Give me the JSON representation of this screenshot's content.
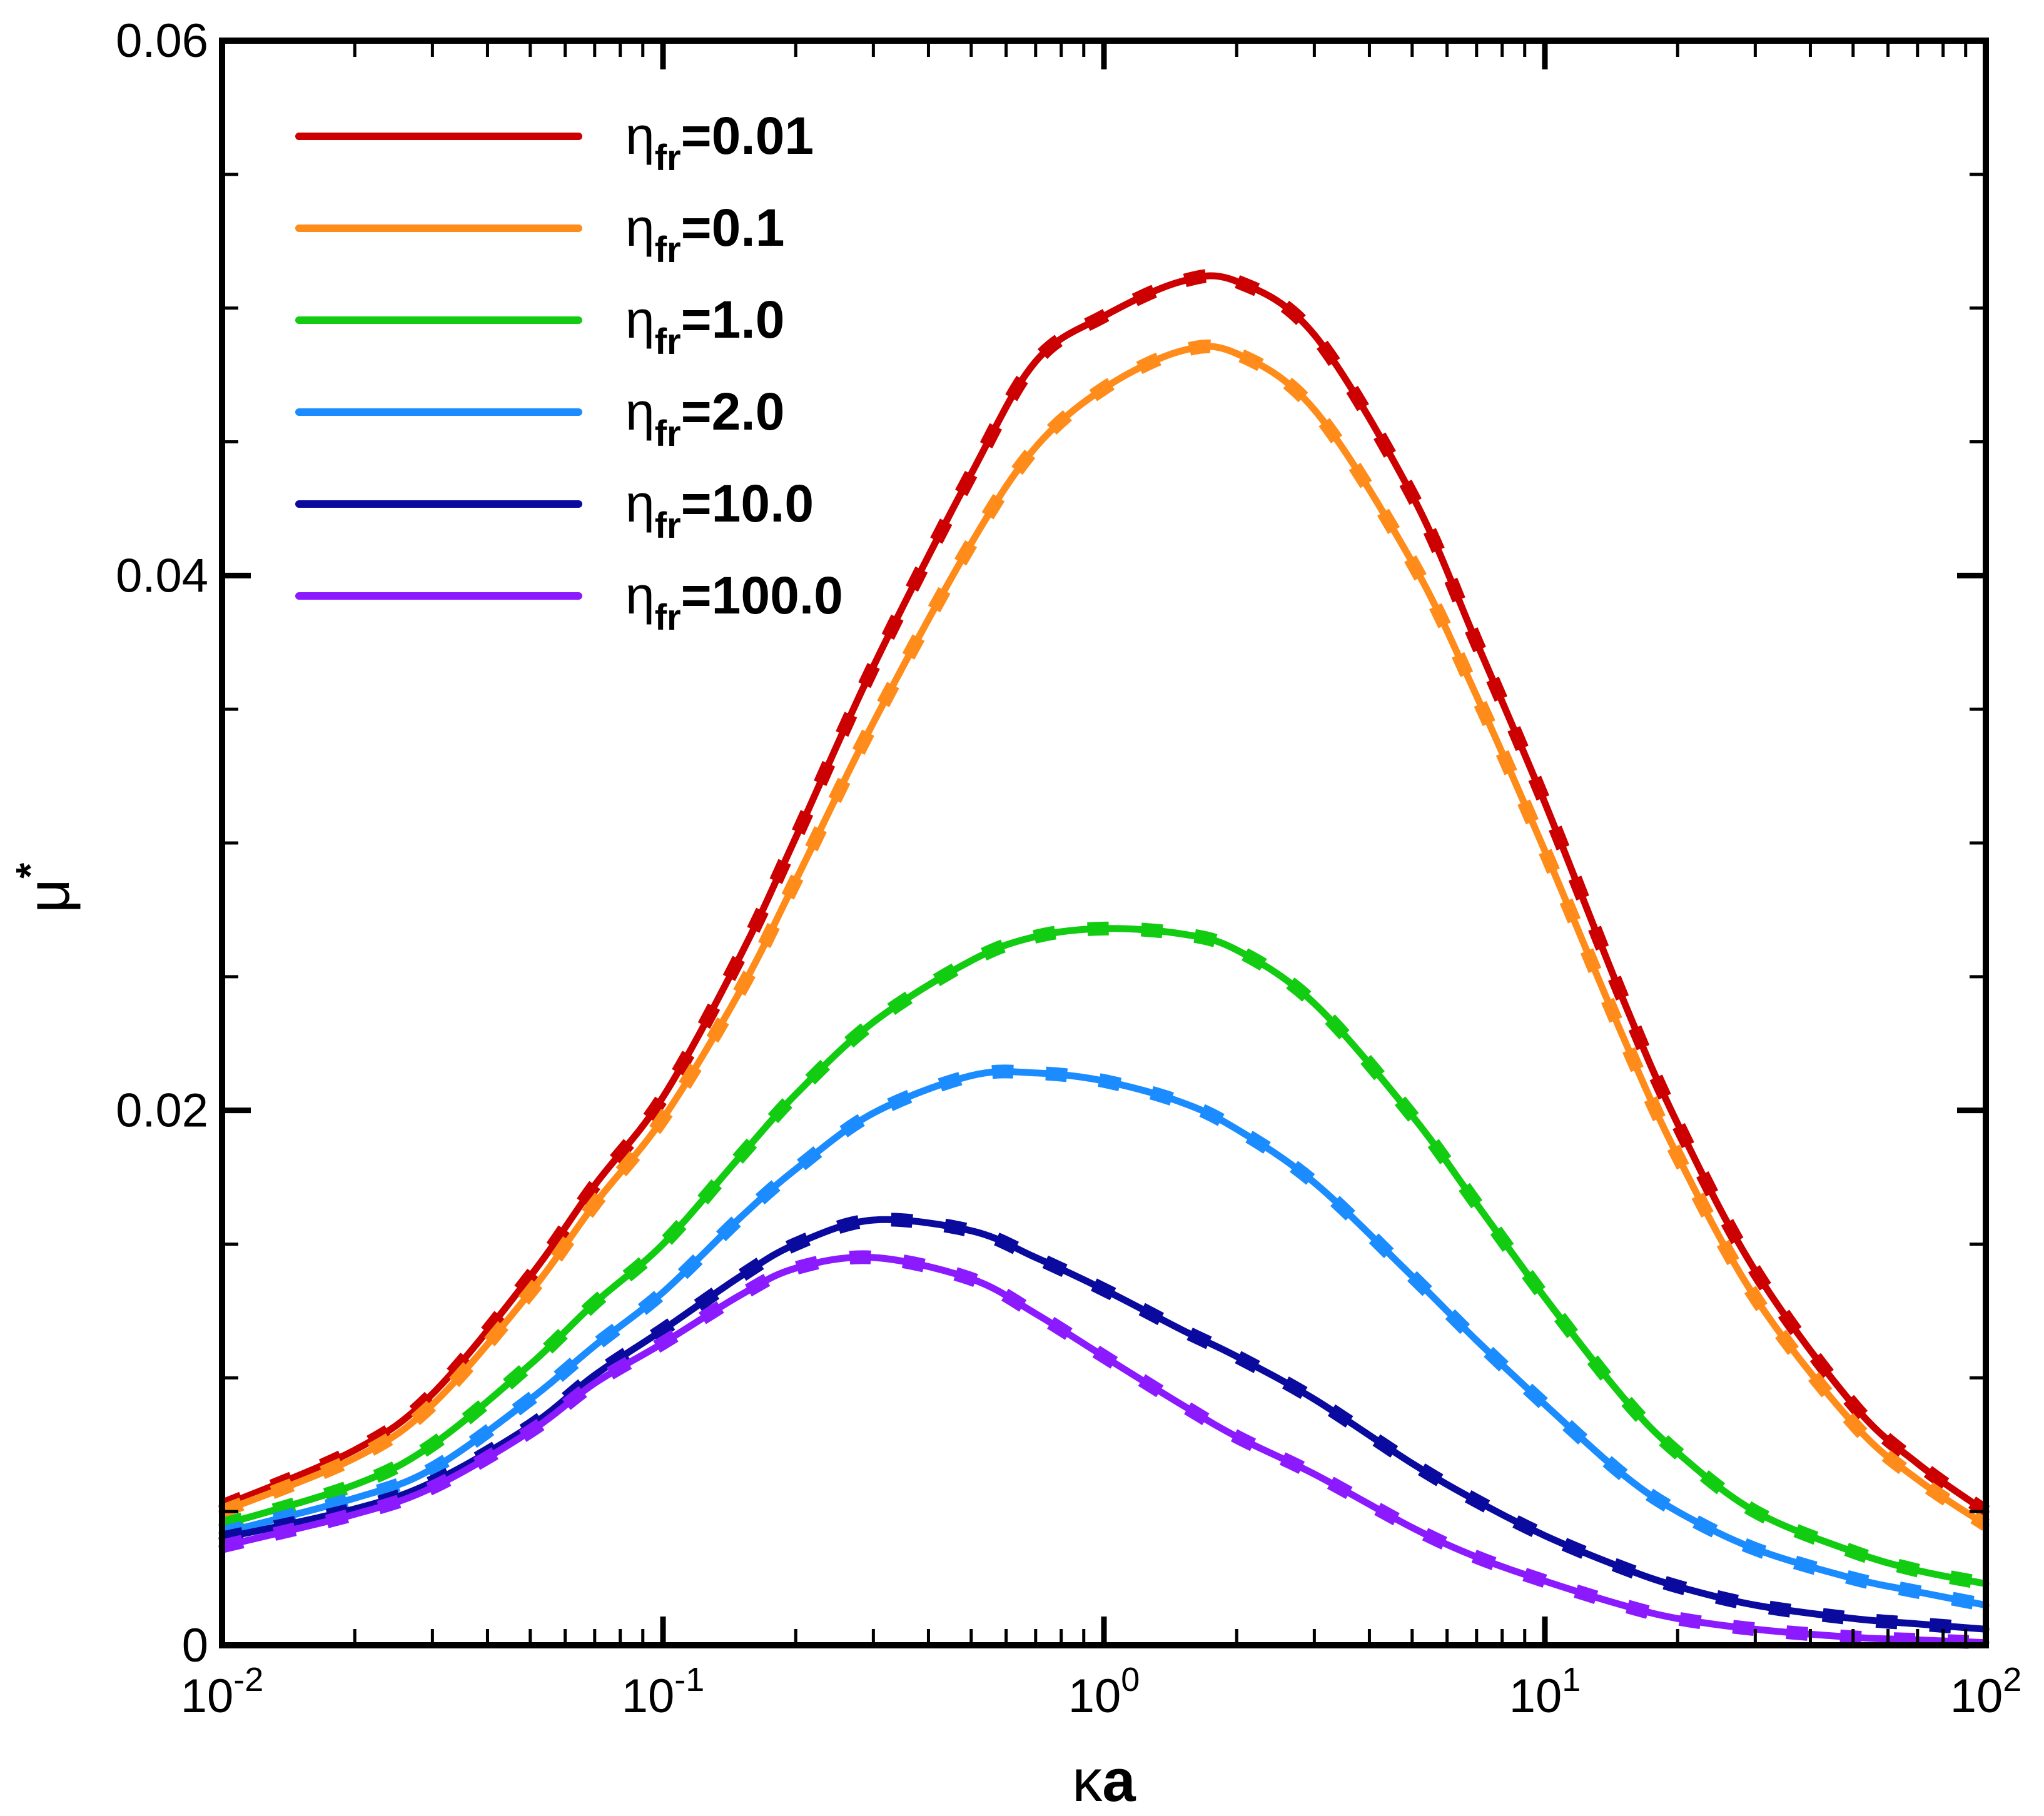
{
  "chart_data": {
    "type": "line",
    "title": "",
    "xscale": "log",
    "xlim": [
      0.01,
      100
    ],
    "ylim": [
      0,
      0.06
    ],
    "xlabel": {
      "greek": "κ",
      "text": "a"
    },
    "ylabel": {
      "greek": "μ",
      "sup": "*"
    },
    "xticks": [
      {
        "value": 0.01,
        "base": "10",
        "exp": "-2"
      },
      {
        "value": 0.1,
        "base": "10",
        "exp": "-1"
      },
      {
        "value": 1,
        "base": "10",
        "exp": "0"
      },
      {
        "value": 10,
        "base": "10",
        "exp": "1"
      },
      {
        "value": 100,
        "base": "10",
        "exp": "2"
      }
    ],
    "yticks": [
      {
        "value": 0,
        "label": "0"
      },
      {
        "value": 0.02,
        "label": "0.02"
      },
      {
        "value": 0.04,
        "label": "0.04"
      },
      {
        "value": 0.06,
        "label": "0.06"
      }
    ],
    "legend_position": "top-left",
    "line_style_note": "solid lines overlaid by dashed lines of same color",
    "series": [
      {
        "name": "η_fr=0.01",
        "legend": {
          "greek": "η",
          "sub": "fr",
          "rest": "=0.01"
        },
        "color": "#cc0000",
        "x": [
          0.01,
          0.02,
          0.03,
          0.05,
          0.07,
          0.1,
          0.15,
          0.2,
          0.3,
          0.5,
          0.7,
          1.0,
          1.5,
          2.0,
          3.0,
          5.0,
          7.0,
          10,
          15,
          20,
          30,
          50,
          70,
          100
        ],
        "y": [
          0.0052,
          0.0073,
          0.0094,
          0.0138,
          0.0172,
          0.0205,
          0.0258,
          0.0302,
          0.0366,
          0.0438,
          0.048,
          0.0497,
          0.051,
          0.051,
          0.049,
          0.043,
          0.0375,
          0.0315,
          0.0242,
          0.0195,
          0.014,
          0.009,
          0.0068,
          0.005
        ]
      },
      {
        "name": "η_fr=0.1",
        "legend": {
          "greek": "η",
          "sub": "fr",
          "rest": "=0.1"
        },
        "color": "#ff8c1a",
        "x": [
          0.01,
          0.02,
          0.03,
          0.05,
          0.07,
          0.1,
          0.15,
          0.2,
          0.3,
          0.5,
          0.7,
          1.0,
          1.5,
          2.0,
          3.0,
          5.0,
          7.0,
          10,
          15,
          20,
          30,
          50,
          70,
          100
        ],
        "y": [
          0.005,
          0.007,
          0.009,
          0.0132,
          0.0165,
          0.0197,
          0.0245,
          0.0286,
          0.0345,
          0.0412,
          0.0448,
          0.047,
          0.0484,
          0.0483,
          0.0462,
          0.0405,
          0.0355,
          0.0297,
          0.0228,
          0.0183,
          0.013,
          0.0083,
          0.0062,
          0.0045
        ]
      },
      {
        "name": "η_fr=1.0",
        "legend": {
          "greek": "η",
          "sub": "fr",
          "rest": "=1.0"
        },
        "color": "#11cc11",
        "x": [
          0.01,
          0.02,
          0.03,
          0.05,
          0.07,
          0.1,
          0.15,
          0.2,
          0.3,
          0.5,
          0.7,
          1.0,
          1.5,
          2.0,
          3.0,
          5.0,
          7.0,
          10,
          15,
          20,
          30,
          50,
          70,
          100
        ],
        "y": [
          0.0045,
          0.006,
          0.0075,
          0.0105,
          0.0128,
          0.015,
          0.0183,
          0.0206,
          0.0233,
          0.0256,
          0.0265,
          0.0268,
          0.0266,
          0.026,
          0.024,
          0.0198,
          0.0165,
          0.013,
          0.0093,
          0.0072,
          0.005,
          0.0035,
          0.0028,
          0.0023
        ]
      },
      {
        "name": "η_fr=2.0",
        "legend": {
          "greek": "η",
          "sub": "fr",
          "rest": "=2.0"
        },
        "color": "#1a8cff",
        "x": [
          0.01,
          0.02,
          0.03,
          0.05,
          0.07,
          0.1,
          0.15,
          0.2,
          0.3,
          0.5,
          0.7,
          1.0,
          1.5,
          2.0,
          3.0,
          5.0,
          7.0,
          10,
          15,
          20,
          30,
          50,
          70,
          100
        ],
        "y": [
          0.0042,
          0.0055,
          0.0066,
          0.0092,
          0.0112,
          0.0132,
          0.016,
          0.0178,
          0.0199,
          0.0213,
          0.0214,
          0.0211,
          0.0203,
          0.0193,
          0.0173,
          0.0138,
          0.0114,
          0.009,
          0.0064,
          0.005,
          0.0036,
          0.0025,
          0.002,
          0.0015
        ]
      },
      {
        "name": "η_fr=10.0",
        "legend": {
          "greek": "η",
          "sub": "fr",
          "rest": "=10.0"
        },
        "color": "#0a0a9e",
        "x": [
          0.01,
          0.02,
          0.03,
          0.05,
          0.07,
          0.1,
          0.15,
          0.2,
          0.3,
          0.5,
          0.7,
          1.0,
          1.5,
          2.0,
          3.0,
          5.0,
          7.0,
          10,
          15,
          20,
          30,
          50,
          70,
          100
        ],
        "y": [
          0.004,
          0.0051,
          0.0061,
          0.0082,
          0.0101,
          0.0118,
          0.0138,
          0.015,
          0.0159,
          0.0155,
          0.0145,
          0.0133,
          0.0118,
          0.0108,
          0.0092,
          0.0068,
          0.0054,
          0.0041,
          0.0029,
          0.0022,
          0.0015,
          0.001,
          0.0008,
          0.0006
        ]
      },
      {
        "name": "η_fr=100.0",
        "legend": {
          "greek": "η",
          "sub": "fr",
          "rest": "=100.0"
        },
        "color": "#8c1aff",
        "x": [
          0.01,
          0.02,
          0.03,
          0.05,
          0.07,
          0.1,
          0.15,
          0.2,
          0.3,
          0.5,
          0.7,
          1.0,
          1.5,
          2.0,
          3.0,
          5.0,
          7.0,
          10,
          15,
          20,
          30,
          50,
          70,
          100
        ],
        "y": [
          0.0037,
          0.0049,
          0.0059,
          0.008,
          0.0098,
          0.0113,
          0.0131,
          0.0141,
          0.0145,
          0.0137,
          0.0124,
          0.0108,
          0.009,
          0.0078,
          0.0064,
          0.0044,
          0.0033,
          0.0024,
          0.0015,
          0.001,
          0.0006,
          0.0003,
          0.0002,
          0.0001
        ]
      }
    ]
  }
}
